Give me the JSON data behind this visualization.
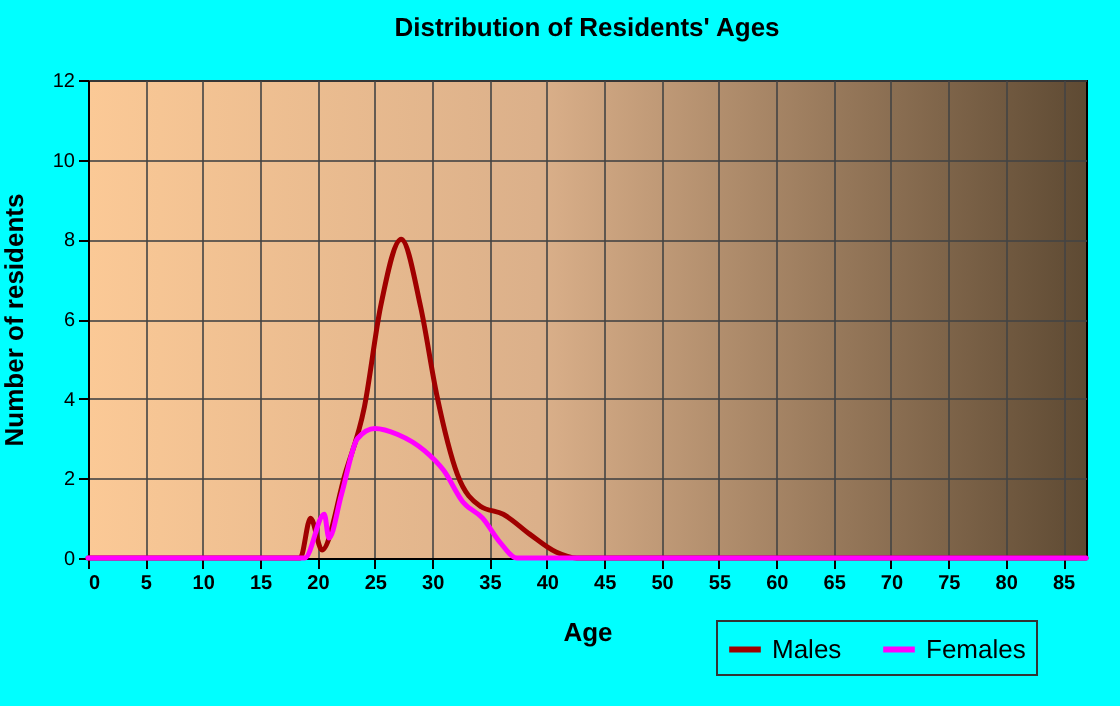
{
  "chart_data": {
    "type": "line",
    "title": "Distribution of Residents' Ages",
    "xlabel": "Age",
    "ylabel": "Number of residents",
    "xlim": [
      0,
      87
    ],
    "xticks": [
      0,
      5,
      10,
      15,
      20,
      25,
      30,
      35,
      40,
      45,
      50,
      55,
      60,
      65,
      70,
      75,
      80,
      85
    ],
    "ylim": [
      0,
      12
    ],
    "yticks": [
      0,
      2,
      4,
      6,
      8,
      10,
      12
    ],
    "grid": true,
    "legend": "bottom right",
    "marker": "none",
    "line_style": "solid",
    "series": [
      {
        "name": "Males",
        "color": "#a00000",
        "x": [
          0,
          18.5,
          19.4,
          20.4,
          22.4,
          24.1,
          25.5,
          27.3,
          29,
          30.4,
          32.2,
          34.2,
          36.2,
          38.5,
          40.8,
          42.6,
          87
        ],
        "values": [
          0,
          0,
          1.0,
          0.2,
          2.1,
          3.8,
          6.3,
          8.0,
          6.3,
          4.1,
          2.1,
          1.3,
          1.1,
          0.6,
          0.15,
          0,
          0
        ]
      },
      {
        "name": "Females",
        "color": "#ff00ff",
        "x": [
          0,
          18.9,
          20.6,
          21.0,
          22.1,
          23.5,
          25,
          27,
          29.3,
          31,
          32.7,
          34.4,
          35.9,
          37.4,
          87
        ],
        "values": [
          0,
          0,
          1.1,
          0.5,
          1.6,
          3.0,
          3.25,
          3.1,
          2.7,
          2.2,
          1.4,
          1.0,
          0.4,
          0,
          0
        ]
      }
    ]
  }
}
